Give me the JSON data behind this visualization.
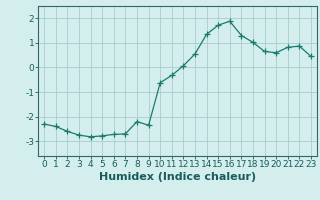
{
  "x": [
    0,
    1,
    2,
    3,
    4,
    5,
    6,
    7,
    8,
    9,
    10,
    11,
    12,
    13,
    14,
    15,
    16,
    17,
    18,
    19,
    20,
    21,
    22,
    23
  ],
  "y": [
    -2.3,
    -2.4,
    -2.6,
    -2.75,
    -2.82,
    -2.78,
    -2.72,
    -2.7,
    -2.2,
    -2.35,
    -0.62,
    -0.32,
    0.07,
    0.55,
    1.35,
    1.72,
    1.88,
    1.3,
    1.02,
    0.65,
    0.6,
    0.82,
    0.87,
    0.45
  ],
  "line_color": "#1a7a6e",
  "marker": "+",
  "marker_size": 4,
  "bg_color": "#d4eeee",
  "grid_color": "#aacccc",
  "xlabel": "Humidex (Indice chaleur)",
  "xlabel_fontsize": 8,
  "tick_fontsize": 6.5,
  "ylim": [
    -3.6,
    2.5
  ],
  "xlim": [
    -0.5,
    23.5
  ],
  "yticks": [
    -3,
    -2,
    -1,
    0,
    1,
    2
  ],
  "xticks": [
    0,
    1,
    2,
    3,
    4,
    5,
    6,
    7,
    8,
    9,
    10,
    11,
    12,
    13,
    14,
    15,
    16,
    17,
    18,
    19,
    20,
    21,
    22,
    23
  ]
}
